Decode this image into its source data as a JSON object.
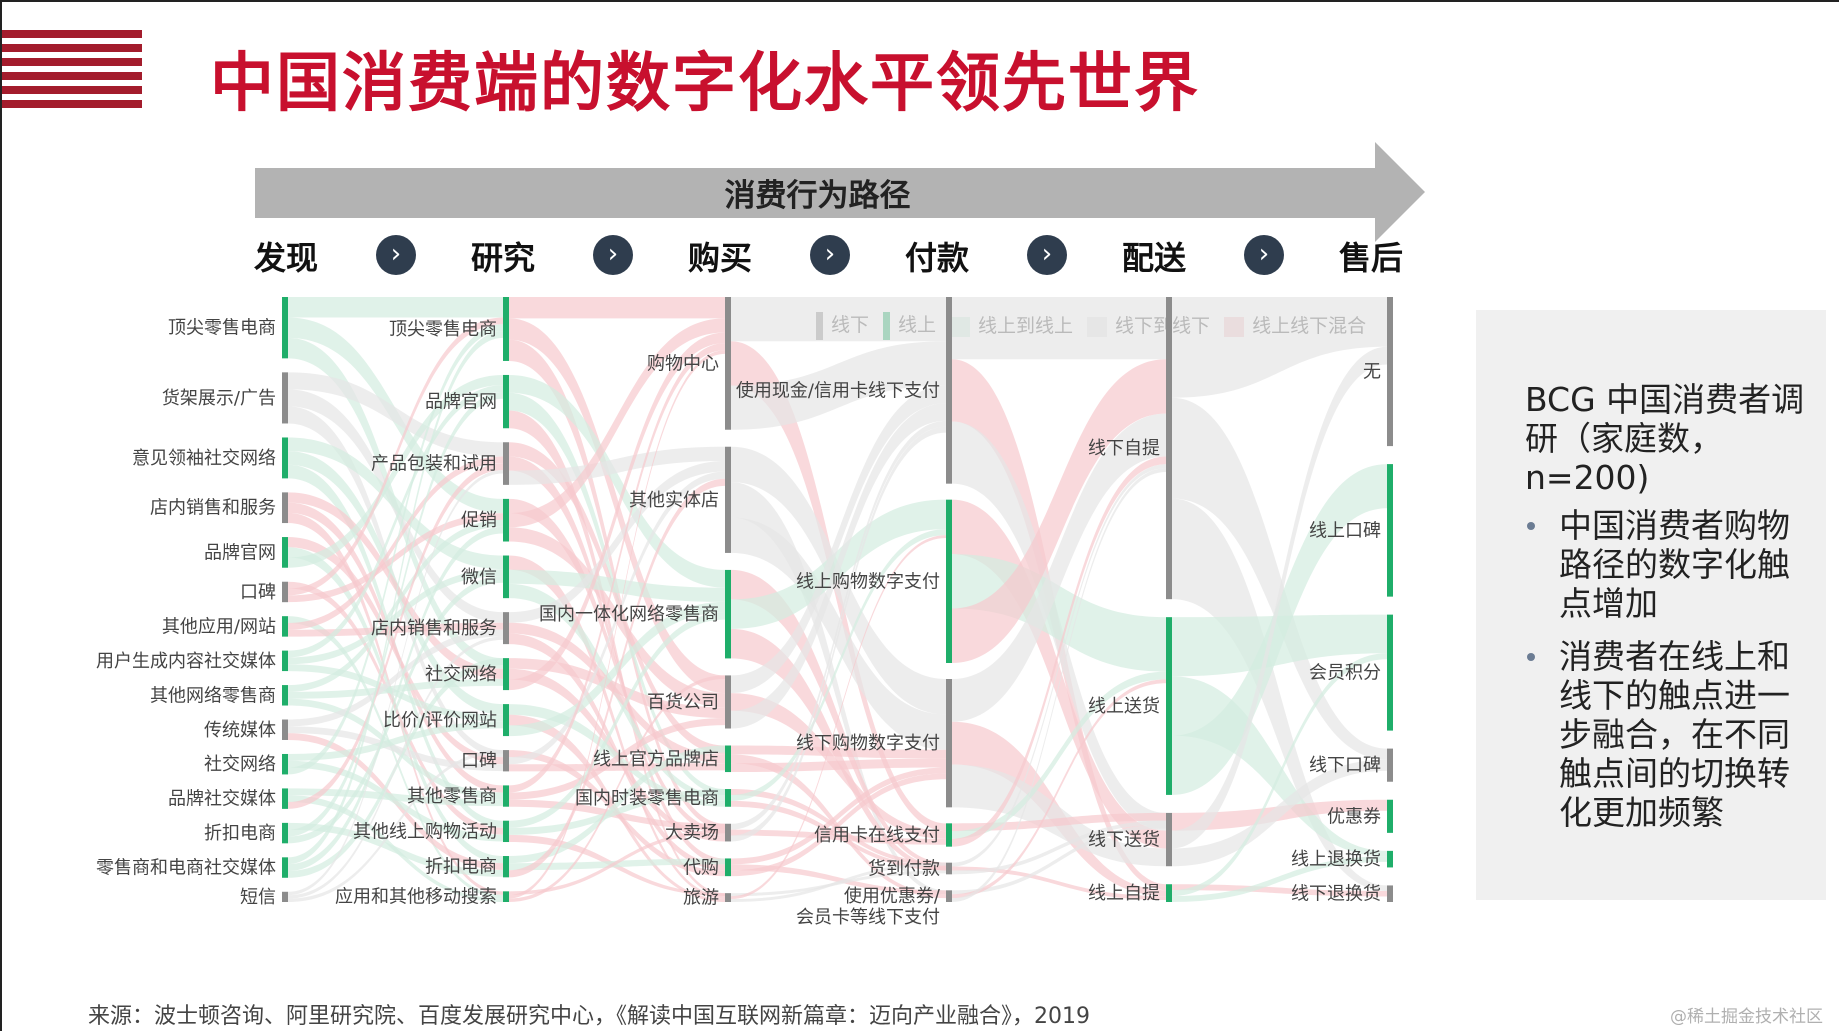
{
  "title": "中国消费端的数字化水平领先世界",
  "arrow_label": "消费行为路径",
  "stages": [
    "发现",
    "研究",
    "购买",
    "付款",
    "配送",
    "售后"
  ],
  "chevron_glyph": "›",
  "legend": [
    {
      "label": "线下",
      "kind": "bar",
      "color": "#8c8c8c"
    },
    {
      "label": "线上",
      "kind": "bar",
      "color": "#1fae6a"
    },
    {
      "label": "线上到线上",
      "kind": "box",
      "color": "#d3ede0"
    },
    {
      "label": "线下到线下",
      "kind": "box",
      "color": "#e6e6e6"
    },
    {
      "label": "线上线下混合",
      "kind": "box",
      "color": "#f6c9cd"
    }
  ],
  "colors": {
    "brand_red": "#c8102e",
    "offline": "#8c8c8c",
    "online": "#1fae6a",
    "online_to_online": "#d3ede0",
    "offline_to_offline": "#e6e6e6",
    "mixed": "#f6c9cd"
  },
  "columns": [
    {
      "name": "发现",
      "nodes": [
        {
          "label": "顶尖零售电商",
          "type": "online"
        },
        {
          "label": "货架展示/广告",
          "type": "offline"
        },
        {
          "label": "意见领袖社交网络",
          "type": "online"
        },
        {
          "label": "店内销售和服务",
          "type": "offline"
        },
        {
          "label": "品牌官网",
          "type": "online"
        },
        {
          "label": "口碑",
          "type": "offline"
        },
        {
          "label": "其他应用/网站",
          "type": "online"
        },
        {
          "label": "用户生成内容社交媒体",
          "type": "online"
        },
        {
          "label": "其他网络零售商",
          "type": "online"
        },
        {
          "label": "传统媒体",
          "type": "offline"
        },
        {
          "label": "社交网络",
          "type": "online"
        },
        {
          "label": "品牌社交媒体",
          "type": "online"
        },
        {
          "label": "折扣电商",
          "type": "online"
        },
        {
          "label": "零售商和电商社交媒体",
          "type": "online"
        },
        {
          "label": "短信",
          "type": "offline"
        }
      ]
    },
    {
      "name": "研究",
      "nodes": [
        {
          "label": "顶尖零售电商",
          "type": "online"
        },
        {
          "label": "品牌官网",
          "type": "online"
        },
        {
          "label": "产品包装和试用",
          "type": "offline"
        },
        {
          "label": "促销",
          "type": "online"
        },
        {
          "label": "微信",
          "type": "online"
        },
        {
          "label": "店内销售和服务",
          "type": "offline"
        },
        {
          "label": "社交网络",
          "type": "online"
        },
        {
          "label": "比价/评价网站",
          "type": "online"
        },
        {
          "label": "口碑",
          "type": "offline"
        },
        {
          "label": "其他零售商",
          "type": "online"
        },
        {
          "label": "其他线上购物活动",
          "type": "online"
        },
        {
          "label": "折扣电商",
          "type": "online"
        },
        {
          "label": "应用和其他移动搜索",
          "type": "online"
        }
      ]
    },
    {
      "name": "购买",
      "nodes": [
        {
          "label": "购物中心",
          "type": "offline"
        },
        {
          "label": "其他实体店",
          "type": "offline"
        },
        {
          "label": "国内一体化网络零售商",
          "type": "online"
        },
        {
          "label": "百货公司",
          "type": "offline"
        },
        {
          "label": "线上官方品牌店",
          "type": "online"
        },
        {
          "label": "国内时装零售电商",
          "type": "online"
        },
        {
          "label": "大卖场",
          "type": "offline"
        },
        {
          "label": "代购",
          "type": "online"
        },
        {
          "label": "旅游",
          "type": "offline"
        }
      ]
    },
    {
      "name": "付款",
      "nodes": [
        {
          "label": "使用现金/信用卡线下支付",
          "type": "offline"
        },
        {
          "label": "线上购物数字支付",
          "type": "online"
        },
        {
          "label": "线下购物数字支付",
          "type": "offline"
        },
        {
          "label": "信用卡在线支付",
          "type": "online"
        },
        {
          "label": "货到付款",
          "type": "offline"
        },
        {
          "label": "使用优惠券/",
          "label2": "会员卡等线下支付",
          "type": "offline"
        }
      ]
    },
    {
      "name": "配送",
      "nodes": [
        {
          "label": "线下自提",
          "type": "offline"
        },
        {
          "label": "线上送货",
          "type": "online"
        },
        {
          "label": "线下送货",
          "type": "offline"
        },
        {
          "label": "线上自提",
          "type": "online"
        }
      ]
    },
    {
      "name": "售后",
      "nodes": [
        {
          "label": "无",
          "type": "offline"
        },
        {
          "label": "线上口碑",
          "type": "online"
        },
        {
          "label": "会员积分",
          "type": "online"
        },
        {
          "label": "线下口碑",
          "type": "offline"
        },
        {
          "label": "优惠券",
          "type": "online"
        },
        {
          "label": "线上退换货",
          "type": "online"
        },
        {
          "label": "线下退换货",
          "type": "offline"
        }
      ]
    }
  ],
  "panel": {
    "title": "BCG 中国消费者调研（家庭数，n=200)",
    "bullets": [
      "中国消费者购物路径的数字化触点增加",
      "消费者在线上和线下的触点进一步融合，在不同触点间的切换转化更加频繁"
    ]
  },
  "source": "来源：波士顿咨询、阿里研究院、百度发展研究中心，《解读中国互联网新篇章：迈向产业融合》，2019",
  "watermark": "@稀土掘金技术社区"
}
